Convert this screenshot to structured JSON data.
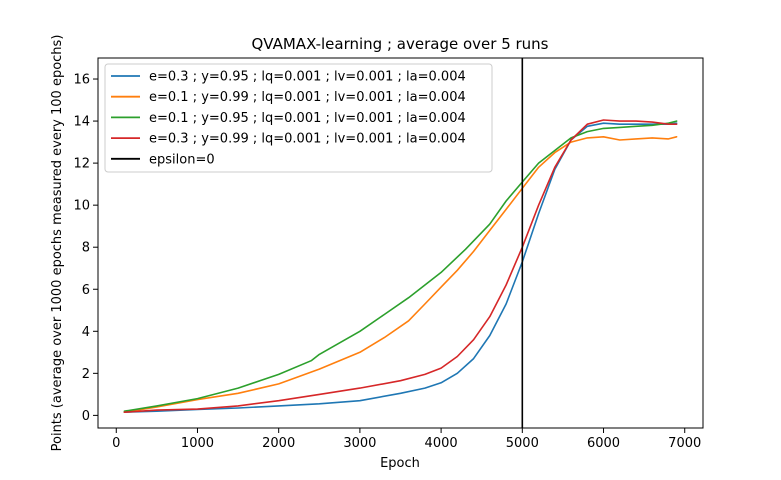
{
  "chart_data": {
    "type": "line",
    "title": "QVAMAX-learning ; average over 5 runs",
    "xlabel": "Epoch",
    "ylabel": "Points (average over 1000 epochs measured every 100 epochs)",
    "xlim": [
      -225,
      7225
    ],
    "ylim": [
      -0.6,
      17.0
    ],
    "xticks": [
      0,
      1000,
      2000,
      3000,
      4000,
      5000,
      6000,
      7000
    ],
    "yticks": [
      0,
      2,
      4,
      6,
      8,
      10,
      12,
      14,
      16
    ],
    "grid": false,
    "legend_position": "top-left",
    "vline": {
      "x": 5000,
      "label": "epsilon=0",
      "color": "#000000"
    },
    "series": [
      {
        "name": "e=0.3 ; y=0.95 ; lq=0.001 ; lv=0.001 ; la=0.004",
        "color": "#1f77b4",
        "x": [
          100,
          500,
          1000,
          1500,
          2000,
          2500,
          3000,
          3500,
          3800,
          4000,
          4200,
          4400,
          4600,
          4800,
          5000,
          5200,
          5400,
          5600,
          5800,
          6000,
          6200,
          6400,
          6600,
          6800,
          6900
        ],
        "y": [
          0.15,
          0.2,
          0.28,
          0.35,
          0.45,
          0.55,
          0.7,
          1.05,
          1.3,
          1.55,
          2.0,
          2.7,
          3.8,
          5.3,
          7.3,
          9.6,
          11.7,
          13.1,
          13.75,
          13.9,
          13.85,
          13.85,
          13.85,
          13.85,
          13.9
        ]
      },
      {
        "name": "e=0.1 ; y=0.99 ; lq=0.001 ; lv=0.001 ; la=0.004",
        "color": "#ff7f0e",
        "x": [
          100,
          500,
          1000,
          1500,
          2000,
          2500,
          3000,
          3300,
          3600,
          3800,
          4000,
          4200,
          4400,
          4600,
          4800,
          5000,
          5200,
          5400,
          5600,
          5800,
          6000,
          6200,
          6400,
          6600,
          6800,
          6900
        ],
        "y": [
          0.15,
          0.4,
          0.75,
          1.05,
          1.5,
          2.2,
          3.0,
          3.7,
          4.5,
          5.3,
          6.1,
          6.9,
          7.8,
          8.8,
          9.8,
          10.8,
          11.8,
          12.5,
          13.0,
          13.2,
          13.25,
          13.1,
          13.15,
          13.2,
          13.15,
          13.25
        ]
      },
      {
        "name": "e=0.1 ; y=0.95 ; lq=0.001 ; lv=0.001 ; la=0.004",
        "color": "#2ca02c",
        "x": [
          100,
          500,
          1000,
          1500,
          2000,
          2400,
          2500,
          3000,
          3300,
          3600,
          4000,
          4300,
          4600,
          4800,
          5000,
          5200,
          5400,
          5600,
          5800,
          6000,
          6200,
          6400,
          6600,
          6800,
          6900
        ],
        "y": [
          0.2,
          0.45,
          0.8,
          1.3,
          1.95,
          2.6,
          2.9,
          4.0,
          4.8,
          5.6,
          6.8,
          7.9,
          9.1,
          10.2,
          11.1,
          12.0,
          12.6,
          13.2,
          13.5,
          13.65,
          13.7,
          13.75,
          13.8,
          13.9,
          14.0
        ]
      },
      {
        "name": "e=0.3 ; y=0.99 ; lq=0.001 ; lv=0.001 ; la=0.004",
        "color": "#d62728",
        "x": [
          100,
          500,
          1000,
          1500,
          2000,
          2500,
          3000,
          3500,
          3800,
          4000,
          4200,
          4400,
          4600,
          4800,
          5000,
          5200,
          5400,
          5600,
          5800,
          6000,
          6200,
          6400,
          6600,
          6800,
          6900
        ],
        "y": [
          0.15,
          0.25,
          0.3,
          0.45,
          0.7,
          1.0,
          1.3,
          1.65,
          1.95,
          2.25,
          2.8,
          3.6,
          4.7,
          6.2,
          8.0,
          10.0,
          11.8,
          13.1,
          13.85,
          14.05,
          14.0,
          14.0,
          13.95,
          13.85,
          13.85
        ]
      }
    ]
  }
}
